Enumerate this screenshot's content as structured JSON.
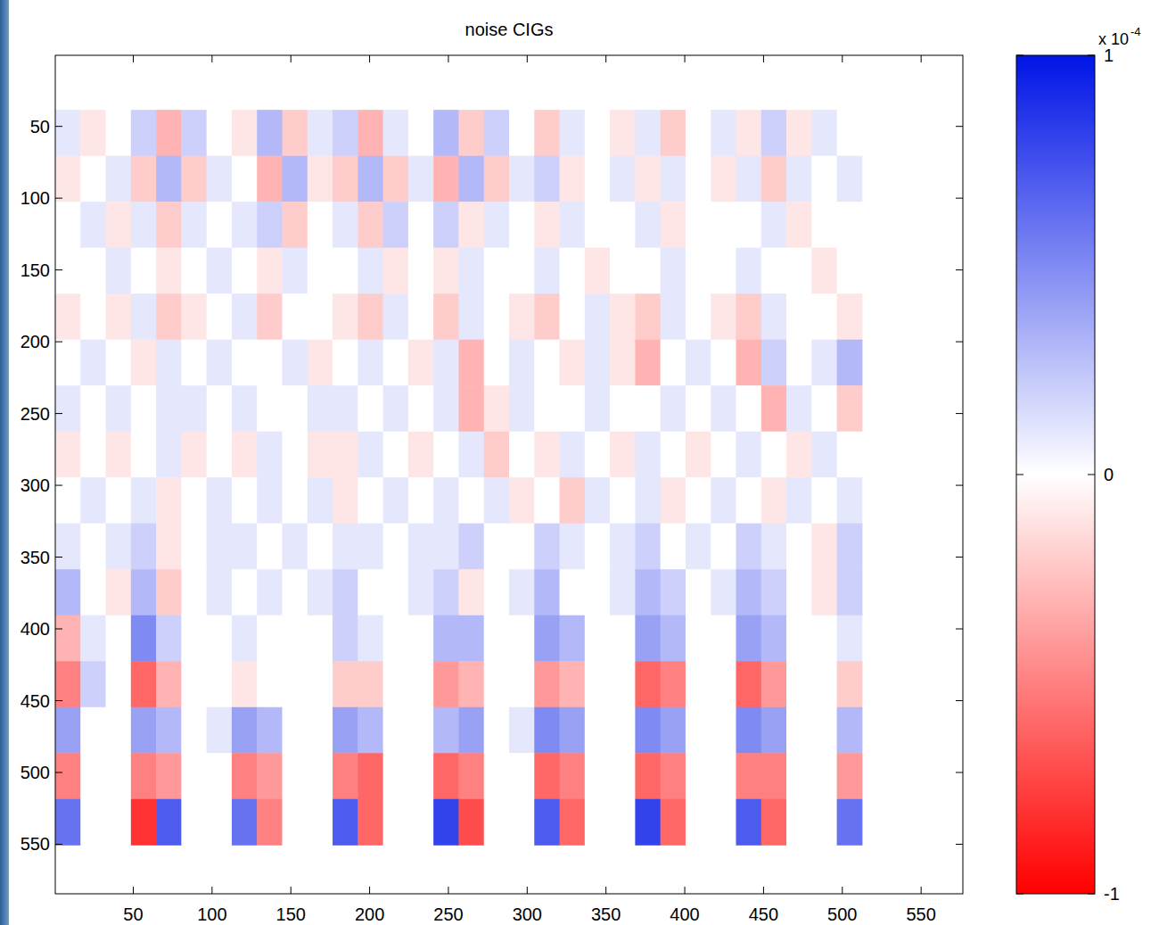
{
  "chart_data": {
    "type": "heatmap",
    "title": "noise CIGs",
    "x": [
      8.5,
      24.5,
      40.5,
      56.5,
      72.5,
      88.5,
      104.5,
      120.5,
      136.5,
      152.5,
      168.5,
      184.5,
      200.5,
      216.5,
      232.5,
      248.5,
      264.5,
      280.5,
      296.5,
      312.5,
      328.5,
      344.5,
      360.5,
      376.5,
      392.5,
      408.5,
      424.5,
      440.5,
      456.5,
      472.5,
      488.5,
      504.5
    ],
    "y": [
      54.5,
      86.5,
      118.5,
      150.5,
      182.5,
      214.5,
      246.5,
      278.5,
      310.5,
      342.5,
      374.5,
      406.5,
      438.5,
      470.5,
      502.5,
      534.5
    ],
    "cells": [
      [
        0.1,
        -0.1,
        0.0,
        0.2,
        -0.3,
        0.2,
        0.0,
        -0.1,
        0.3,
        -0.2,
        0.1,
        0.2,
        -0.3,
        0.1,
        0.0,
        0.3,
        -0.2,
        0.2,
        0.0,
        -0.2,
        0.1,
        0.0,
        -0.1,
        0.1,
        -0.2,
        0.0,
        0.1,
        -0.1,
        0.2,
        -0.1,
        0.1,
        0.0
      ],
      [
        -0.1,
        0.0,
        0.1,
        -0.2,
        0.3,
        -0.2,
        0.1,
        0.0,
        -0.3,
        0.3,
        -0.1,
        -0.2,
        0.3,
        -0.2,
        0.1,
        -0.3,
        0.3,
        -0.2,
        0.1,
        0.2,
        -0.1,
        0.0,
        0.1,
        -0.1,
        0.1,
        0.0,
        -0.1,
        0.1,
        -0.2,
        0.1,
        0.0,
        0.1
      ],
      [
        0.0,
        0.1,
        -0.1,
        0.1,
        -0.2,
        0.1,
        0.0,
        0.1,
        0.2,
        -0.2,
        0.0,
        0.1,
        -0.2,
        0.2,
        0.0,
        0.2,
        -0.1,
        0.1,
        0.0,
        -0.1,
        0.1,
        0.0,
        0.0,
        0.1,
        -0.1,
        0.0,
        0.0,
        0.0,
        0.1,
        -0.1,
        0.0,
        0.0
      ],
      [
        0.0,
        0.0,
        0.1,
        0.0,
        -0.1,
        0.0,
        0.1,
        0.0,
        -0.1,
        0.1,
        0.0,
        0.0,
        0.1,
        -0.1,
        0.0,
        -0.1,
        0.1,
        0.0,
        0.0,
        0.1,
        0.0,
        -0.1,
        0.0,
        0.0,
        0.1,
        0.0,
        0.0,
        0.1,
        0.0,
        0.0,
        -0.1,
        0.0
      ],
      [
        -0.1,
        0.0,
        -0.1,
        0.1,
        -0.2,
        -0.1,
        0.0,
        0.1,
        -0.2,
        0.0,
        0.0,
        -0.1,
        -0.2,
        0.1,
        0.0,
        -0.2,
        0.1,
        0.0,
        -0.1,
        -0.2,
        0.0,
        0.1,
        -0.1,
        -0.2,
        0.1,
        0.0,
        -0.1,
        -0.2,
        0.1,
        0.0,
        0.0,
        -0.1
      ],
      [
        0.0,
        0.1,
        0.0,
        -0.1,
        0.1,
        0.0,
        0.1,
        0.0,
        0.0,
        0.1,
        -0.1,
        0.0,
        0.1,
        0.0,
        -0.1,
        0.1,
        -0.3,
        0.0,
        0.1,
        0.0,
        -0.1,
        0.1,
        -0.1,
        -0.3,
        0.0,
        0.1,
        0.0,
        -0.3,
        0.2,
        0.0,
        0.1,
        0.3
      ],
      [
        0.1,
        0.0,
        0.1,
        0.0,
        0.1,
        0.1,
        0.0,
        0.1,
        0.0,
        0.0,
        0.1,
        0.1,
        0.0,
        0.1,
        0.0,
        0.1,
        -0.3,
        -0.1,
        0.1,
        0.0,
        0.0,
        0.1,
        0.0,
        0.0,
        0.1,
        0.0,
        0.1,
        0.0,
        -0.3,
        0.1,
        0.0,
        -0.2
      ],
      [
        -0.1,
        0.0,
        -0.1,
        0.0,
        0.1,
        -0.1,
        0.0,
        -0.1,
        0.1,
        0.0,
        -0.1,
        -0.1,
        0.1,
        0.0,
        -0.1,
        0.0,
        0.1,
        -0.2,
        0.0,
        -0.1,
        0.1,
        0.0,
        -0.1,
        0.1,
        0.0,
        -0.1,
        0.0,
        0.1,
        0.0,
        -0.1,
        0.1,
        0.0
      ],
      [
        0.0,
        0.1,
        0.0,
        0.1,
        -0.1,
        0.0,
        0.1,
        0.0,
        0.1,
        0.0,
        0.1,
        -0.1,
        0.0,
        0.1,
        0.0,
        0.1,
        0.0,
        0.1,
        -0.1,
        0.0,
        -0.2,
        0.1,
        0.0,
        0.1,
        -0.1,
        0.0,
        0.1,
        0.0,
        -0.1,
        0.1,
        0.0,
        0.1
      ],
      [
        0.1,
        0.0,
        0.1,
        0.2,
        -0.1,
        0.0,
        0.1,
        0.1,
        0.0,
        0.1,
        0.0,
        0.1,
        0.1,
        0.0,
        0.1,
        0.1,
        0.2,
        0.0,
        0.0,
        0.2,
        0.1,
        0.0,
        0.1,
        0.2,
        0.0,
        0.1,
        0.0,
        0.2,
        0.1,
        0.0,
        -0.1,
        0.2
      ],
      [
        0.3,
        0.0,
        -0.1,
        0.3,
        -0.2,
        0.0,
        0.1,
        0.0,
        0.1,
        0.0,
        0.1,
        0.2,
        0.0,
        0.0,
        0.1,
        0.2,
        -0.1,
        0.0,
        0.1,
        0.3,
        0.0,
        0.0,
        0.1,
        0.3,
        0.2,
        0.0,
        0.1,
        0.3,
        0.2,
        0.0,
        -0.1,
        0.2
      ],
      [
        -0.3,
        0.1,
        0.0,
        0.5,
        0.2,
        0.0,
        0.0,
        0.1,
        0.0,
        0.0,
        0.0,
        0.2,
        0.1,
        0.0,
        0.0,
        0.3,
        0.3,
        0.0,
        0.0,
        0.4,
        0.3,
        0.0,
        0.0,
        0.4,
        0.3,
        0.0,
        0.0,
        0.4,
        0.3,
        0.0,
        0.0,
        0.1
      ],
      [
        -0.5,
        0.2,
        0.0,
        -0.6,
        -0.3,
        0.0,
        0.0,
        -0.1,
        0.0,
        0.0,
        0.0,
        -0.2,
        -0.2,
        0.0,
        0.0,
        -0.4,
        -0.3,
        0.0,
        0.0,
        -0.4,
        -0.3,
        0.0,
        0.0,
        -0.6,
        -0.5,
        0.0,
        0.0,
        -0.6,
        -0.4,
        0.0,
        0.0,
        -0.2
      ],
      [
        0.4,
        0.0,
        0.0,
        0.4,
        0.3,
        0.0,
        0.1,
        0.4,
        0.3,
        0.0,
        0.0,
        0.4,
        0.3,
        0.0,
        0.0,
        0.3,
        0.4,
        0.0,
        0.1,
        0.5,
        0.4,
        0.0,
        0.0,
        0.5,
        0.4,
        0.0,
        0.0,
        0.5,
        0.4,
        0.0,
        0.0,
        0.3
      ],
      [
        -0.5,
        0.0,
        0.0,
        -0.5,
        -0.4,
        0.0,
        0.0,
        -0.5,
        -0.4,
        0.0,
        0.0,
        -0.5,
        -0.6,
        0.0,
        0.0,
        -0.6,
        -0.5,
        0.0,
        0.0,
        -0.6,
        -0.5,
        0.0,
        0.0,
        -0.6,
        -0.5,
        0.0,
        0.0,
        -0.5,
        -0.5,
        0.0,
        0.0,
        -0.4
      ],
      [
        0.6,
        0.0,
        0.0,
        -0.8,
        0.7,
        0.0,
        0.0,
        0.6,
        -0.5,
        0.0,
        0.0,
        0.7,
        -0.6,
        0.0,
        0.0,
        0.8,
        -0.7,
        0.0,
        0.0,
        0.7,
        -0.6,
        0.0,
        0.0,
        0.8,
        -0.6,
        0.0,
        0.0,
        0.7,
        -0.6,
        0.0,
        0.0,
        0.6
      ]
    ],
    "xlim": [
      0.5,
      576.5
    ],
    "ylim": [
      0.5,
      584.5
    ],
    "xticks": [
      50,
      100,
      150,
      200,
      250,
      300,
      350,
      400,
      450,
      500,
      550
    ],
    "yticks": [
      50,
      100,
      150,
      200,
      250,
      300,
      350,
      400,
      450,
      500,
      550
    ],
    "colorbar_lim": [
      -1,
      1
    ],
    "colorbar_ticks": [
      -1,
      0,
      1
    ],
    "colorbar_label": "x 10",
    "colorbar_exponent": "-4"
  }
}
